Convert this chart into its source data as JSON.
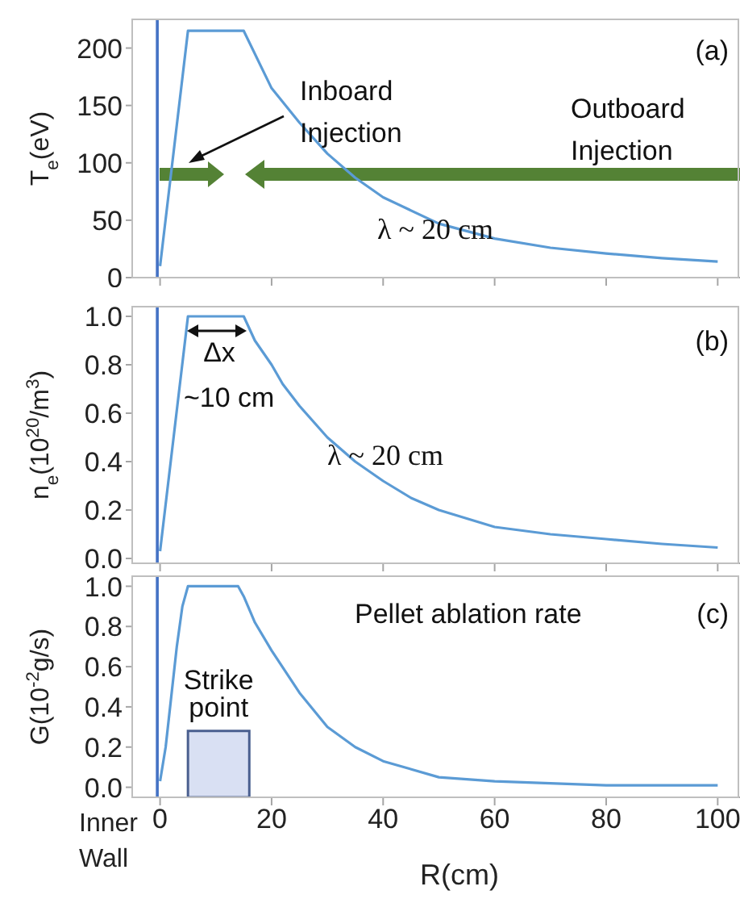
{
  "chart_data": [
    {
      "type": "line",
      "ylabel": "T$_{e}$(eV)",
      "x": [
        0,
        5,
        15,
        20,
        25,
        30,
        35,
        40,
        50,
        60,
        70,
        80,
        90,
        100
      ],
      "values": [
        10,
        215,
        215,
        165,
        135,
        108,
        87,
        70,
        47,
        34,
        26,
        21,
        17,
        14
      ],
      "color": "#5b9bd5",
      "xlim": [
        -5,
        104
      ],
      "xticks": [
        0,
        20,
        40,
        60,
        80,
        100
      ],
      "ylim": [
        0,
        225
      ],
      "yticks": [
        0,
        50,
        100,
        150,
        200
      ],
      "tick_labels": "y",
      "annotations": [
        "(a)",
        "Inboard Injection",
        "Outboard Injection",
        "λ ~ 20 cm"
      ],
      "ref_lines": [
        {
          "axis": "x",
          "value": -0.5,
          "color": "#4472c4"
        }
      ]
    },
    {
      "type": "line",
      "ylabel": "n$_{e}$(10$^{20}$/m$^{3}$)",
      "x": [
        0,
        5,
        15,
        17,
        20,
        22,
        25,
        30,
        35,
        40,
        45,
        50,
        60,
        70,
        80,
        90,
        100
      ],
      "values": [
        0.03,
        1.0,
        1.0,
        0.9,
        0.8,
        0.72,
        0.63,
        0.5,
        0.4,
        0.32,
        0.25,
        0.2,
        0.13,
        0.1,
        0.08,
        0.06,
        0.045
      ],
      "color": "#5b9bd5",
      "xlim": [
        -5,
        104
      ],
      "xticks": [
        0,
        20,
        40,
        60,
        80,
        100
      ],
      "ylim": [
        -0.02,
        1.04
      ],
      "yticks": [
        {
          "value": 0,
          "label": "0.0"
        },
        {
          "value": 0.2,
          "label": "0.2"
        },
        {
          "value": 0.4,
          "label": "0.4"
        },
        {
          "value": 0.6,
          "label": "0.6"
        },
        {
          "value": 0.8,
          "label": "0.8"
        },
        {
          "value": 1,
          "label": "1.0"
        }
      ],
      "tick_labels": "y",
      "annotations": [
        "(b)",
        "Δx",
        "~10 cm",
        "λ ~ 20 cm"
      ],
      "ref_lines": [
        {
          "axis": "x",
          "value": -0.5,
          "color": "#4472c4"
        }
      ]
    },
    {
      "type": "line",
      "ylabel": "G(10$^{-2}$g/s)",
      "xlabel": "R(cm)",
      "x": [
        0,
        1,
        2,
        3,
        4,
        5,
        14,
        15,
        17,
        20,
        25,
        30,
        35,
        40,
        50,
        60,
        70,
        80,
        90,
        100
      ],
      "values": [
        0.03,
        0.2,
        0.45,
        0.7,
        0.9,
        1.0,
        1.0,
        0.95,
        0.82,
        0.68,
        0.47,
        0.3,
        0.2,
        0.13,
        0.05,
        0.03,
        0.02,
        0.01,
        0.01,
        0.01
      ],
      "color": "#5b9bd5",
      "xlim": [
        -5,
        104
      ],
      "xticks": [
        0,
        20,
        40,
        60,
        80,
        100
      ],
      "ylim": [
        -0.05,
        1.05
      ],
      "yticks": [
        {
          "value": 0,
          "label": "0.0"
        },
        {
          "value": 0.2,
          "label": "0.2"
        },
        {
          "value": 0.4,
          "label": "0.4"
        },
        {
          "value": 0.6,
          "label": "0.6"
        },
        {
          "value": 0.8,
          "label": "0.8"
        },
        {
          "value": 1,
          "label": "1.0"
        }
      ],
      "annotations": [
        "(c)",
        "Pellet ablation rate"
      ],
      "ref_lines": [
        {
          "axis": "x",
          "value": -0.5,
          "label": "Inner Wall",
          "color": "#4472c4"
        }
      ],
      "bands": [
        {
          "axis": "x",
          "from": 5,
          "to": 16,
          "label": "Strike point",
          "color": "#d9e0f3"
        }
      ]
    }
  ]
}
